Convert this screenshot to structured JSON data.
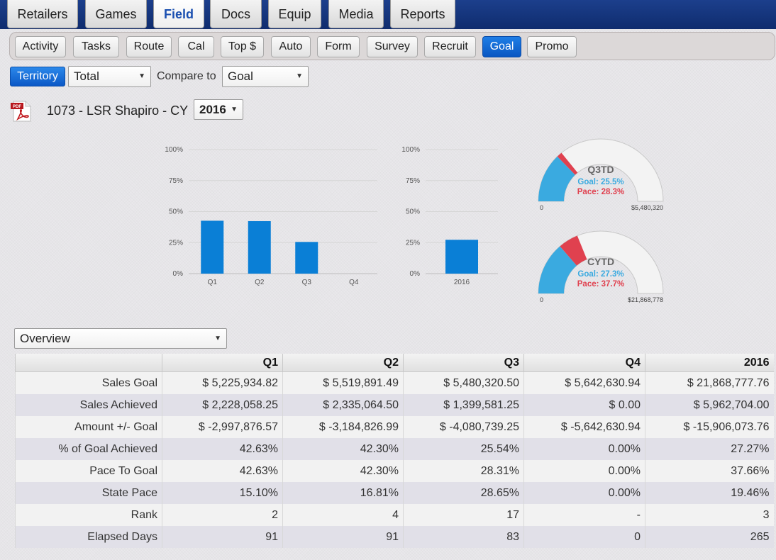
{
  "top_tabs": [
    {
      "label": "Retailers",
      "active": false
    },
    {
      "label": "Games",
      "active": false
    },
    {
      "label": "Field",
      "active": true
    },
    {
      "label": "Docs",
      "active": false
    },
    {
      "label": "Equip",
      "active": false
    },
    {
      "label": "Media",
      "active": false
    },
    {
      "label": "Reports",
      "active": false
    }
  ],
  "sub_tabs": [
    {
      "label": "Activity",
      "active": false
    },
    {
      "label": "Tasks",
      "active": false
    },
    {
      "label": "Route",
      "active": false
    },
    {
      "label": "Cal",
      "active": false
    },
    {
      "label": "Top $",
      "active": false
    },
    {
      "label": "Auto",
      "active": false
    },
    {
      "label": "Form",
      "active": false
    },
    {
      "label": "Survey",
      "active": false
    },
    {
      "label": "Recruit",
      "active": false
    },
    {
      "label": "Goal",
      "active": true
    },
    {
      "label": "Promo",
      "active": false
    }
  ],
  "filters": {
    "territory_button": "Territory",
    "scope_select": "Total",
    "compare_label": "Compare to",
    "compare_select": "Goal"
  },
  "report": {
    "title": "1073 - LSR Shapiro - CY",
    "year_select": "2016",
    "pdf_icon_text": "PDF"
  },
  "chart_data": [
    {
      "type": "bar",
      "categories": [
        "Q1",
        "Q2",
        "Q3",
        "Q4"
      ],
      "values": [
        42.63,
        42.3,
        25.54,
        0
      ],
      "ylim": [
        0,
        100
      ],
      "yticks": [
        "0%",
        "25%",
        "50%",
        "75%",
        "100%"
      ],
      "grid": true,
      "color": "#0a7fd6"
    },
    {
      "type": "bar",
      "categories": [
        "2016"
      ],
      "values": [
        27.27
      ],
      "ylim": [
        0,
        100
      ],
      "yticks": [
        "0%",
        "25%",
        "50%",
        "75%",
        "100%"
      ],
      "grid": true,
      "color": "#0a7fd6"
    },
    {
      "type": "gauge",
      "title": "Q3TD",
      "goal_label": "Goal: 25.5%",
      "pace_label": "Pace: 28.3%",
      "goal_fraction": 0.255,
      "pace_fraction": 0.283,
      "min_label": "0",
      "max_label": "$5,480,320",
      "colors": {
        "goal": "#3aaae0",
        "pace": "#e0414f",
        "track": "#f3f3f3"
      }
    },
    {
      "type": "gauge",
      "title": "CYTD",
      "goal_label": "Goal: 27.3%",
      "pace_label": "Pace: 37.7%",
      "goal_fraction": 0.273,
      "pace_fraction": 0.377,
      "min_label": "0",
      "max_label": "$21,868,778",
      "colors": {
        "goal": "#3aaae0",
        "pace": "#e0414f",
        "track": "#f3f3f3"
      }
    }
  ],
  "table": {
    "view_select": "Overview",
    "headers": [
      "",
      "Q1",
      "Q2",
      "Q3",
      "Q4",
      "2016"
    ],
    "rows": [
      [
        "Sales Goal",
        "$ 5,225,934.82",
        "$ 5,519,891.49",
        "$ 5,480,320.50",
        "$ 5,642,630.94",
        "$ 21,868,777.76"
      ],
      [
        "Sales Achieved",
        "$ 2,228,058.25",
        "$ 2,335,064.50",
        "$ 1,399,581.25",
        "$ 0.00",
        "$ 5,962,704.00"
      ],
      [
        "Amount +/- Goal",
        "$ -2,997,876.57",
        "$ -3,184,826.99",
        "$ -4,080,739.25",
        "$ -5,642,630.94",
        "$ -15,906,073.76"
      ],
      [
        "% of Goal Achieved",
        "42.63%",
        "42.30%",
        "25.54%",
        "0.00%",
        "27.27%"
      ],
      [
        "Pace To Goal",
        "42.63%",
        "42.30%",
        "28.31%",
        "0.00%",
        "37.66%"
      ],
      [
        "State Pace",
        "15.10%",
        "16.81%",
        "28.65%",
        "0.00%",
        "19.46%"
      ],
      [
        "Rank",
        "2",
        "4",
        "17",
        "-",
        "3"
      ],
      [
        "Elapsed Days",
        "91",
        "91",
        "83",
        "0",
        "265"
      ]
    ]
  }
}
